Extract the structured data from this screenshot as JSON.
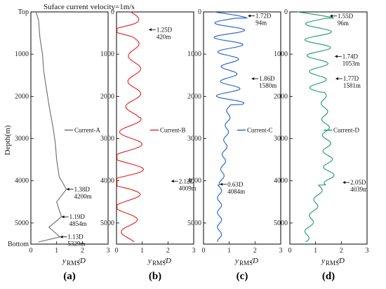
{
  "chart_data": {
    "type": "line",
    "figure_title": "Suface current velocity=1m/s",
    "y_label": "Depth(m)",
    "x_label_main": "y",
    "x_label_sub": "RMS",
    "x_label_tail": "/D",
    "x_ticks": [
      "0",
      "1",
      "2",
      "3"
    ],
    "y_ticks": [
      "0",
      "1000",
      "2000",
      "3000",
      "4000",
      "5000"
    ],
    "top_label": "Top",
    "bottom_label": "Bottom",
    "xlim": [
      0,
      3
    ],
    "ylim": [
      0,
      5500
    ],
    "colors": {
      "tick_top_bottom": "#3399dd",
      "current_a": "#6b6b6b",
      "current_b": "#e02020",
      "current_c": "#1f5fd0",
      "current_d": "#1f9a6a"
    },
    "panels": [
      {
        "label": "(a)",
        "series_name": "Current-A",
        "color": "#6b6b6b",
        "style": "smooth",
        "points": [
          [
            0.2,
            0
          ],
          [
            0.3,
            200
          ],
          [
            0.35,
            600
          ],
          [
            0.45,
            1000
          ],
          [
            0.5,
            1400
          ],
          [
            0.6,
            1800
          ],
          [
            0.7,
            2200
          ],
          [
            0.85,
            2700
          ],
          [
            0.95,
            3100
          ],
          [
            1.0,
            3500
          ],
          [
            1.1,
            3900
          ],
          [
            1.38,
            4200
          ],
          [
            1.0,
            4500
          ],
          [
            1.19,
            4854
          ],
          [
            0.7,
            5100
          ],
          [
            1.13,
            5329
          ],
          [
            0.3,
            5450
          ]
        ],
        "annotations": [
          {
            "x": 1.38,
            "y": 4200,
            "lines": [
              "1.38D",
              "4200m"
            ]
          },
          {
            "x": 1.19,
            "y": 4854,
            "lines": [
              "1.19D",
              "4854m"
            ]
          },
          {
            "x": 1.13,
            "y": 5329,
            "lines": [
              "1.13D",
              "5329m"
            ]
          }
        ]
      },
      {
        "label": "(b)",
        "series_name": "Current-B",
        "color": "#e02020",
        "style": "oscillating",
        "annotations": [
          {
            "x": 1.25,
            "y": 420,
            "lines": [
              "1.25D",
              "420m"
            ]
          },
          {
            "x": 2.12,
            "y": 4009,
            "lines": [
              "2.12D",
              "4009m"
            ]
          }
        ]
      },
      {
        "label": "(c)",
        "series_name": "Current-C",
        "color": "#1f5fd0",
        "style": "oscillating",
        "annotations": [
          {
            "x": 1.72,
            "y": 94,
            "lines": [
              "1.72D",
              "94m"
            ]
          },
          {
            "x": 1.86,
            "y": 1580,
            "lines": [
              "1.86D",
              "1580m"
            ]
          },
          {
            "x": 0.63,
            "y": 4084,
            "lines": [
              "0.63D",
              "4084m"
            ]
          }
        ]
      },
      {
        "label": "(d)",
        "series_name": "Current-D",
        "color": "#1f9a6a",
        "style": "oscillating",
        "annotations": [
          {
            "x": 1.55,
            "y": 96,
            "lines": [
              "1.55D",
              "96m"
            ]
          },
          {
            "x": 1.74,
            "y": 1053,
            "lines": [
              "1.74D",
              "1053m"
            ]
          },
          {
            "x": 1.77,
            "y": 1581,
            "lines": [
              "1.77D",
              "1581m"
            ]
          },
          {
            "x": 2.05,
            "y": 4039,
            "lines": [
              "2.05D",
              "4039m"
            ]
          }
        ]
      }
    ]
  }
}
